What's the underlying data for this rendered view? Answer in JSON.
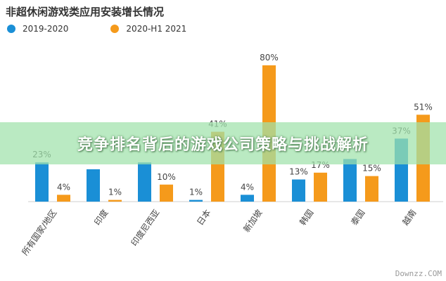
{
  "chart_data": {
    "type": "bar",
    "title": "非超休闲游戏类应用安装增长情况",
    "categories": [
      "所有国家/地区",
      "印度",
      "印度尼西亚",
      "日本",
      "新加坡",
      "韩国",
      "泰国",
      "越南"
    ],
    "series": [
      {
        "name": "2019-2020",
        "color": "#1a8fd6",
        "values": [
          23,
          19,
          23,
          1,
          4,
          13,
          25,
          37
        ],
        "labels": [
          "23%",
          "",
          "",
          "1%",
          "4%",
          "13%",
          "",
          "37%"
        ]
      },
      {
        "name": "2020-H1 2021",
        "color": "#f59a1b",
        "values": [
          4,
          1,
          10,
          41,
          80,
          17,
          15,
          51
        ],
        "labels": [
          "4%",
          "1%",
          "10%",
          "41%",
          "80%",
          "17%",
          "15%",
          "51%"
        ]
      }
    ],
    "ylim": [
      0,
      80
    ],
    "legend": "top-left"
  },
  "banner": {
    "text": "竞争排名背后的游戏公司策略与挑战解析"
  },
  "watermark": {
    "text": "Downzz.COM"
  }
}
